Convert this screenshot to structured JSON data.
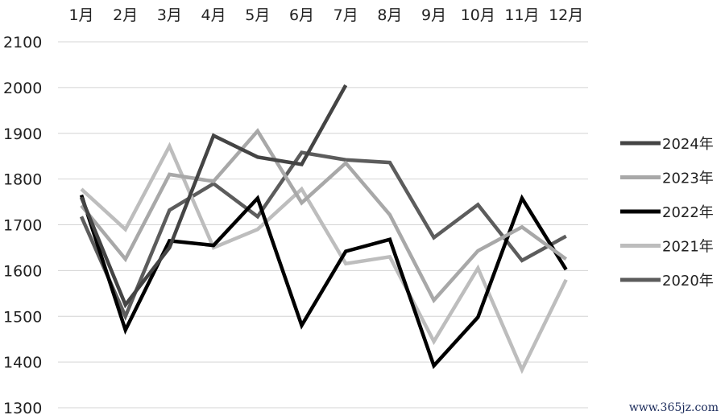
{
  "chart_data": {
    "type": "line",
    "categories": [
      "1月",
      "2月",
      "3月",
      "4月",
      "5月",
      "6月",
      "7月",
      "8月",
      "9月",
      "10月",
      "11月",
      "12月"
    ],
    "ylim": [
      1300,
      2100
    ],
    "yticks": [
      1300,
      1400,
      1500,
      1600,
      1700,
      1800,
      1900,
      2000,
      2100
    ],
    "grid": true,
    "legend_position": "right",
    "series": [
      {
        "name": "2024年",
        "color": "#444444",
        "values": [
          1760,
          1525,
          1650,
          1895,
          1848,
          1832,
          2005,
          null,
          null,
          null,
          null,
          null
        ]
      },
      {
        "name": "2023年",
        "color": "#a8a8a8",
        "values": [
          1742,
          1625,
          1810,
          1795,
          1905,
          1748,
          1835,
          1722,
          1535,
          1643,
          1695,
          1625
        ]
      },
      {
        "name": "2022年",
        "color": "#000000",
        "values": [
          1765,
          1470,
          1665,
          1655,
          1758,
          1480,
          1642,
          1668,
          1392,
          1498,
          1758,
          1602
        ]
      },
      {
        "name": "2021年",
        "color": "#bdbdbd",
        "values": [
          1778,
          1690,
          1872,
          1650,
          1690,
          1778,
          1615,
          1630,
          1445,
          1605,
          1383,
          1580
        ]
      },
      {
        "name": "2020年",
        "color": "#5c5c5c",
        "values": [
          1718,
          1500,
          1732,
          1790,
          1718,
          1858,
          1842,
          1836,
          1672,
          1744,
          1622,
          1675
        ]
      }
    ]
  },
  "watermark": "www.365jz.com"
}
